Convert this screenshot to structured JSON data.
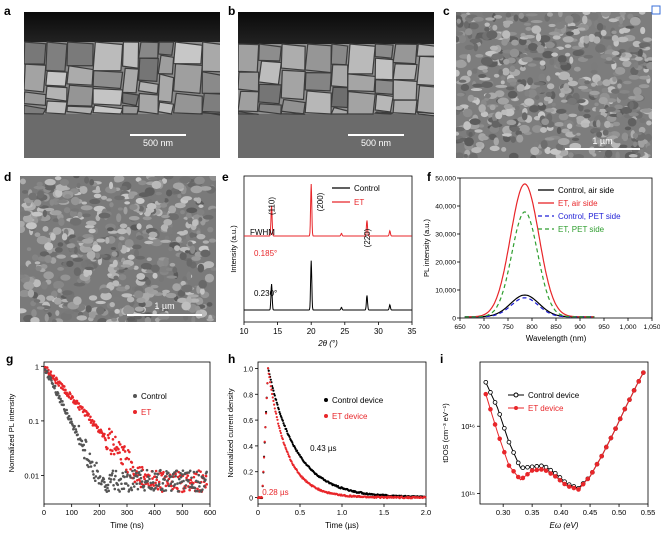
{
  "panels": {
    "a": {
      "label": "a",
      "scale": "500 nm"
    },
    "b": {
      "label": "b",
      "scale": "500 nm"
    },
    "c": {
      "label": "c",
      "scale": "1 µm"
    },
    "d": {
      "label": "d",
      "scale": "1 µm"
    },
    "e": {
      "label": "e"
    },
    "f": {
      "label": "f"
    },
    "g": {
      "label": "g"
    },
    "h": {
      "label": "h"
    },
    "i": {
      "label": "i"
    }
  },
  "chart_data": [
    {
      "id": "e",
      "type": "line",
      "xlabel": "2θ (°)",
      "ylabel": "Intensity (a.u.)",
      "xlim": [
        10,
        35
      ],
      "xticks": [
        10,
        15,
        20,
        25,
        30,
        35
      ],
      "series": [
        {
          "name": "Control",
          "color": "#000000",
          "peaks": [
            {
              "x": 14.1,
              "h": 0.5
            },
            {
              "x": 20.0,
              "h": 0.95
            },
            {
              "x": 24.5,
              "h": 0.05
            },
            {
              "x": 28.3,
              "h": 0.28
            },
            {
              "x": 31.7,
              "h": 0.1
            }
          ]
        },
        {
          "name": "ET",
          "color": "#e8262a",
          "peaks": [
            {
              "x": 14.1,
              "h": 0.58
            },
            {
              "x": 20.0,
              "h": 1.0
            },
            {
              "x": 24.5,
              "h": 0.05
            },
            {
              "x": 28.3,
              "h": 0.3
            },
            {
              "x": 31.7,
              "h": 0.1
            }
          ]
        }
      ],
      "annotations": {
        "p110": "(110)",
        "p200": "(200)",
        "p220": "(220)",
        "fwhm": "FWHM",
        "et_fwhm": "0.185°",
        "ctrl_fwhm": "0.230°"
      }
    },
    {
      "id": "f",
      "type": "line",
      "xlabel": "Wavelength (nm)",
      "ylabel": "PL intensity (a.u.)",
      "xlim": [
        650,
        1050
      ],
      "ylim": [
        0,
        50000
      ],
      "xticks": [
        650,
        700,
        750,
        800,
        850,
        900,
        950,
        "1,000",
        "1,050"
      ],
      "yticks": [
        "0",
        "10,000",
        "20,000",
        "30,000",
        "40,000",
        "50,000"
      ],
      "peak_wavelength": 785,
      "series": [
        {
          "name": "Control, air side",
          "color": "#000000",
          "dash": false,
          "peak": 7800,
          "width": 42
        },
        {
          "name": "ET, air side",
          "color": "#e8262a",
          "dash": false,
          "peak": 47500,
          "width": 42
        },
        {
          "name": "Control, PET side",
          "color": "#1f1fd6",
          "dash": true,
          "peak": 6800,
          "width": 40
        },
        {
          "name": "ET, PET side",
          "color": "#2f9e2f",
          "dash": true,
          "peak": 37500,
          "width": 38
        }
      ]
    },
    {
      "id": "g",
      "type": "scatter",
      "xlabel": "Time (ns)",
      "ylabel": "Normalized PL intensity",
      "xlim": [
        0,
        600
      ],
      "ylim": [
        0.003,
        1.2
      ],
      "yscale": "log",
      "xticks": [
        0,
        100,
        200,
        300,
        400,
        500,
        600
      ],
      "yticks": [
        "1",
        "0.1",
        "0.01"
      ],
      "series": [
        {
          "name": "Control",
          "color": "#555555",
          "tau": 42,
          "floor": 0.006
        },
        {
          "name": "ET",
          "color": "#e8262a",
          "tau": 75,
          "floor": 0.006
        }
      ]
    },
    {
      "id": "h",
      "type": "line",
      "xlabel": "Time (µs)",
      "ylabel": "Normalized current density",
      "xlim": [
        0,
        2.0
      ],
      "ylim": [
        -0.05,
        1.05
      ],
      "xticks": [
        "0",
        "0.5",
        "1.0",
        "1.5",
        "2.0"
      ],
      "yticks": [
        "0",
        "0.2",
        "0.4",
        "0.6",
        "0.8",
        "1.0"
      ],
      "series": [
        {
          "name": "Control device",
          "color": "#000000",
          "tau": 0.43
        },
        {
          "name": "ET device",
          "color": "#e8262a",
          "tau": 0.28
        }
      ],
      "annotations": {
        "control_tau": "0.43 µs",
        "et_tau": "0.28 µs"
      }
    },
    {
      "id": "i",
      "type": "line",
      "xlabel": "Eω (eV)",
      "ylabel": "tDOS (cm⁻³ eV⁻¹)",
      "xlim": [
        0.26,
        0.55
      ],
      "yscale": "log",
      "xticks": [
        "0.30",
        "0.35",
        "0.40",
        "0.45",
        "0.50",
        "0.55"
      ],
      "yticks": [
        "10¹⁶",
        "10¹⁵"
      ],
      "series": [
        {
          "name": "Control device",
          "color": "#000000",
          "points": [
            [
              0.27,
              4.5e+16
            ],
            [
              0.29,
              1.9e+16
            ],
            [
              0.31,
              5800000000000000.0
            ],
            [
              0.33,
              2400000000000000.0
            ],
            [
              0.35,
              2500000000000000.0
            ],
            [
              0.37,
              2600000000000000.0
            ],
            [
              0.39,
              2000000000000000.0
            ],
            [
              0.41,
              1400000000000000.0
            ],
            [
              0.43,
              1200000000000000.0
            ],
            [
              0.45,
              1800000000000000.0
            ],
            [
              0.47,
              3600000000000000.0
            ],
            [
              0.49,
              7800000000000000.0
            ],
            [
              0.51,
              1.8e+16
            ],
            [
              0.53,
              4e+16
            ],
            [
              0.545,
              7e+16
            ]
          ]
        },
        {
          "name": "ET device",
          "color": "#e8262a",
          "points": [
            [
              0.27,
              3e+16
            ],
            [
              0.29,
              8200000000000000.0
            ],
            [
              0.31,
              2600000000000000.0
            ],
            [
              0.33,
              1600000000000000.0
            ],
            [
              0.35,
              2200000000000000.0
            ],
            [
              0.37,
              2300000000000000.0
            ],
            [
              0.39,
              1800000000000000.0
            ],
            [
              0.41,
              1300000000000000.0
            ],
            [
              0.43,
              1150000000000000.0
            ],
            [
              0.45,
              1800000000000000.0
            ],
            [
              0.47,
              3600000000000000.0
            ],
            [
              0.49,
              7800000000000000.0
            ],
            [
              0.51,
              1.8e+16
            ],
            [
              0.53,
              4e+16
            ],
            [
              0.545,
              7e+16
            ]
          ]
        }
      ]
    }
  ]
}
